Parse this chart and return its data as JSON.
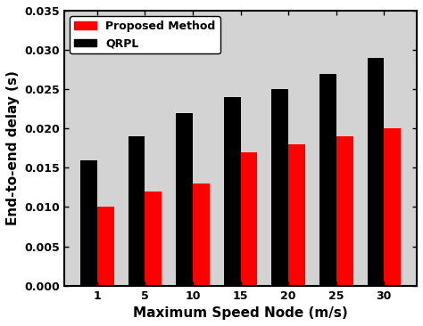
{
  "categories": [
    1,
    5,
    10,
    15,
    20,
    25,
    30
  ],
  "proposed_method": [
    0.01,
    0.012,
    0.013,
    0.017,
    0.018,
    0.019,
    0.02
  ],
  "qrpl": [
    0.016,
    0.019,
    0.022,
    0.024,
    0.025,
    0.027,
    0.029
  ],
  "proposed_color": "#ff0000",
  "qrpl_color": "#000000",
  "ylabel": "End-to-end delay (s)",
  "xlabel": "Maximum Speed Node (m/s)",
  "ylim": [
    0,
    0.035
  ],
  "yticks": [
    0,
    0.005,
    0.01,
    0.015,
    0.02,
    0.025,
    0.03,
    0.035
  ],
  "legend_proposed": "Proposed Method",
  "legend_qrpl": "QRPL",
  "background_color": "#ffffff",
  "plot_bg_color": "#d3d3d3",
  "bar_width": 0.35
}
